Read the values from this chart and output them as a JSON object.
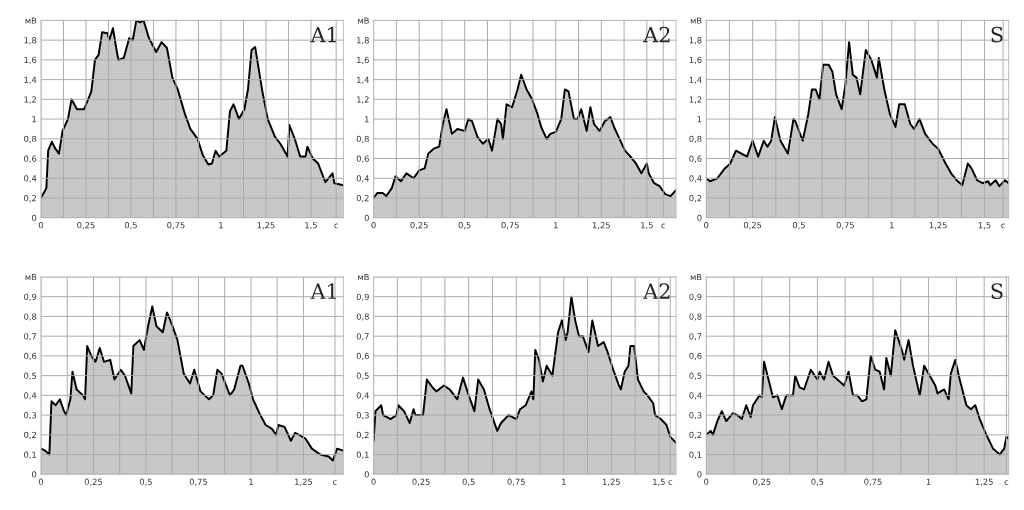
{
  "chart_data": [
    {
      "type": "area",
      "title": "A1",
      "x": [
        0,
        0.03,
        0.04,
        0.06,
        0.08,
        0.1,
        0.12,
        0.15,
        0.17,
        0.2,
        0.24,
        0.28,
        0.3,
        0.32,
        0.34,
        0.37,
        0.38,
        0.4,
        0.42,
        0.43,
        0.46,
        0.49,
        0.51,
        0.53,
        0.55,
        0.57,
        0.6,
        0.62,
        0.64,
        0.67,
        0.7,
        0.73,
        0.76,
        0.8,
        0.83,
        0.87,
        0.9,
        0.93,
        0.95,
        0.97,
        0.99,
        1.03,
        1.05,
        1.07,
        1.1,
        1.13,
        1.15,
        1.17,
        1.19,
        1.23,
        1.26,
        1.3,
        1.33,
        1.37,
        1.38,
        1.41,
        1.44,
        1.47,
        1.48,
        1.51,
        1.54,
        1.58,
        1.62,
        1.63,
        1.68
      ],
      "series": [
        {
          "color": "#c8c8c8",
          "values": [
            0.2,
            0.3,
            0.68,
            0.77,
            0.7,
            0.65,
            0.88,
            1.0,
            1.2,
            1.1,
            1.1,
            1.28,
            1.6,
            1.65,
            1.88,
            1.87,
            1.8,
            1.92,
            1.7,
            1.6,
            1.62,
            1.82,
            1.8,
            2.0,
            1.98,
            2.0,
            1.82,
            1.75,
            1.68,
            1.78,
            1.72,
            1.42,
            1.3,
            1.05,
            0.9,
            0.8,
            0.63,
            0.54,
            0.55,
            0.68,
            0.62,
            0.68,
            1.08,
            1.15,
            1.0,
            1.1,
            1.3,
            1.7,
            1.73,
            1.28,
            1.0,
            0.82,
            0.75,
            0.62,
            0.94,
            0.8,
            0.62,
            0.62,
            0.72,
            0.6,
            0.55,
            0.36,
            0.45,
            0.35,
            0.33
          ]
        }
      ],
      "xlim": [
        0,
        1.68
      ],
      "xticks": [
        0,
        {
          "value": 0.125,
          "label": null
        },
        {
          "value": 0.25,
          "label": "0,25"
        },
        {
          "value": 0.375,
          "label": null
        },
        {
          "value": 0.5,
          "label": "0,5"
        },
        {
          "value": 0.625,
          "label": null
        },
        {
          "value": 0.75,
          "label": "0,75"
        },
        {
          "value": 0.875,
          "label": null
        },
        1,
        {
          "value": 1.125,
          "label": null
        },
        {
          "value": 1.25,
          "label": "1,25"
        },
        {
          "value": 1.375,
          "label": null
        },
        {
          "value": 1.5,
          "label": "1,5"
        },
        {
          "value": 1.64,
          "label": "с"
        }
      ],
      "ylim": [
        0,
        2
      ],
      "yticks": [
        0,
        {
          "value": 0.2,
          "label": "0,2"
        },
        {
          "value": 0.4,
          "label": "0,4"
        },
        {
          "value": 0.6,
          "label": "0,6"
        },
        {
          "value": 0.8,
          "label": "0,8"
        },
        1,
        {
          "value": 1.2,
          "label": "1,2"
        },
        {
          "value": 1.4,
          "label": "1,4"
        },
        {
          "value": 1.6,
          "label": "1,6"
        },
        {
          "value": 1.8,
          "label": "1,8"
        },
        {
          "value": 2,
          "label": "мВ"
        }
      ],
      "grid": true
    },
    {
      "type": "area",
      "title": "A2",
      "x": [
        0,
        0.02,
        0.05,
        0.07,
        0.1,
        0.12,
        0.15,
        0.18,
        0.22,
        0.25,
        0.28,
        0.3,
        0.33,
        0.36,
        0.38,
        0.4,
        0.43,
        0.46,
        0.5,
        0.52,
        0.54,
        0.57,
        0.6,
        0.63,
        0.65,
        0.68,
        0.7,
        0.71,
        0.73,
        0.76,
        0.79,
        0.81,
        0.84,
        0.87,
        0.9,
        0.92,
        0.95,
        0.97,
        1.0,
        1.03,
        1.05,
        1.07,
        1.1,
        1.12,
        1.14,
        1.17,
        1.19,
        1.21,
        1.24,
        1.27,
        1.3,
        1.32,
        1.35,
        1.38,
        1.41,
        1.44,
        1.47,
        1.5,
        1.51,
        1.54,
        1.57,
        1.6,
        1.63,
        1.66
      ],
      "series": [
        {
          "color": "#c8c8c8",
          "values": [
            0.2,
            0.25,
            0.25,
            0.22,
            0.3,
            0.42,
            0.37,
            0.45,
            0.4,
            0.48,
            0.5,
            0.65,
            0.7,
            0.72,
            0.95,
            1.1,
            0.85,
            0.9,
            0.88,
            1.0,
            0.98,
            0.82,
            0.75,
            0.8,
            0.68,
            1.0,
            0.95,
            0.8,
            1.15,
            1.12,
            1.3,
            1.45,
            1.3,
            1.2,
            1.05,
            0.92,
            0.8,
            0.85,
            0.87,
            1.0,
            1.3,
            1.28,
            1.0,
            1.0,
            1.1,
            0.88,
            1.12,
            0.95,
            0.88,
            0.98,
            1.02,
            0.92,
            0.8,
            0.68,
            0.62,
            0.55,
            0.45,
            0.55,
            0.45,
            0.35,
            0.32,
            0.24,
            0.22,
            0.28
          ]
        }
      ],
      "xlim": [
        0,
        1.66
      ],
      "xticks": [
        0,
        {
          "value": 0.125,
          "label": null
        },
        {
          "value": 0.25,
          "label": "0,25"
        },
        {
          "value": 0.375,
          "label": null
        },
        {
          "value": 0.5,
          "label": "0,5"
        },
        {
          "value": 0.625,
          "label": null
        },
        {
          "value": 0.75,
          "label": "0,75"
        },
        {
          "value": 0.875,
          "label": null
        },
        1,
        {
          "value": 1.125,
          "label": null
        },
        {
          "value": 1.25,
          "label": "1,25"
        },
        {
          "value": 1.375,
          "label": null
        },
        {
          "value": 1.5,
          "label": "1,5"
        },
        {
          "value": 1.59,
          "label": "с"
        }
      ],
      "ylim": [
        0,
        2
      ],
      "yticks": [
        0,
        {
          "value": 0.2,
          "label": "0,2"
        },
        {
          "value": 0.4,
          "label": "0,4"
        },
        {
          "value": 0.6,
          "label": "0,6"
        },
        {
          "value": 0.8,
          "label": "0,8"
        },
        1,
        {
          "value": 1.2,
          "label": "1,2"
        },
        {
          "value": 1.4,
          "label": "1,4"
        },
        {
          "value": 1.6,
          "label": "1,6"
        },
        {
          "value": 1.8,
          "label": "1,8"
        },
        {
          "value": 2,
          "label": "мВ"
        }
      ],
      "grid": true
    },
    {
      "type": "area",
      "title": "S",
      "x": [
        0,
        0.02,
        0.06,
        0.1,
        0.13,
        0.16,
        0.19,
        0.22,
        0.25,
        0.28,
        0.31,
        0.33,
        0.35,
        0.37,
        0.4,
        0.44,
        0.47,
        0.48,
        0.52,
        0.55,
        0.57,
        0.59,
        0.61,
        0.63,
        0.66,
        0.68,
        0.7,
        0.73,
        0.75,
        0.77,
        0.79,
        0.81,
        0.83,
        0.86,
        0.89,
        0.92,
        0.93,
        0.96,
        0.99,
        1.02,
        1.04,
        1.07,
        1.1,
        1.12,
        1.15,
        1.18,
        1.22,
        1.25,
        1.29,
        1.32,
        1.35,
        1.38,
        1.41,
        1.43,
        1.46,
        1.49,
        1.52,
        1.53,
        1.56,
        1.58,
        1.61,
        1.63
      ],
      "series": [
        {
          "color": "#c8c8c8",
          "values": [
            0.4,
            0.37,
            0.4,
            0.5,
            0.55,
            0.68,
            0.65,
            0.62,
            0.78,
            0.62,
            0.78,
            0.72,
            0.78,
            1.02,
            0.78,
            0.65,
            1.0,
            0.98,
            0.78,
            1.05,
            1.3,
            1.3,
            1.2,
            1.55,
            1.55,
            1.48,
            1.25,
            1.1,
            1.35,
            1.78,
            1.45,
            1.42,
            1.25,
            1.7,
            1.6,
            1.42,
            1.62,
            1.3,
            1.05,
            0.92,
            1.15,
            1.15,
            0.95,
            0.9,
            1.0,
            0.85,
            0.75,
            0.7,
            0.55,
            0.45,
            0.38,
            0.33,
            0.55,
            0.5,
            0.38,
            0.35,
            0.37,
            0.33,
            0.38,
            0.32,
            0.38,
            0.35
          ]
        }
      ],
      "xlim": [
        0,
        1.63
      ],
      "xticks": [
        0,
        {
          "value": 0.125,
          "label": null
        },
        {
          "value": 0.25,
          "label": "0,25"
        },
        {
          "value": 0.375,
          "label": null
        },
        {
          "value": 0.5,
          "label": "0,5"
        },
        {
          "value": 0.625,
          "label": null
        },
        {
          "value": 0.75,
          "label": "0,75"
        },
        {
          "value": 0.875,
          "label": null
        },
        1,
        {
          "value": 1.125,
          "label": null
        },
        {
          "value": 1.25,
          "label": "1,25"
        },
        {
          "value": 1.375,
          "label": null
        },
        {
          "value": 1.5,
          "label": "1,5"
        },
        {
          "value": 1.6,
          "label": "с"
        }
      ],
      "ylim": [
        0,
        2
      ],
      "yticks": [
        0,
        {
          "value": 0.2,
          "label": "0,2"
        },
        {
          "value": 0.4,
          "label": "0,4"
        },
        {
          "value": 0.6,
          "label": "0,6"
        },
        {
          "value": 0.8,
          "label": "0,8"
        },
        1,
        {
          "value": 1.2,
          "label": "1,2"
        },
        {
          "value": 1.4,
          "label": "1,4"
        },
        {
          "value": 1.6,
          "label": "1,6"
        },
        {
          "value": 1.8,
          "label": "1,8"
        },
        {
          "value": 2,
          "label": "мВ"
        }
      ],
      "grid": true
    },
    {
      "type": "area",
      "title": "A1",
      "x": [
        0,
        0.02,
        0.04,
        0.05,
        0.07,
        0.09,
        0.11,
        0.12,
        0.14,
        0.15,
        0.17,
        0.2,
        0.21,
        0.22,
        0.24,
        0.26,
        0.28,
        0.3,
        0.33,
        0.35,
        0.38,
        0.4,
        0.43,
        0.44,
        0.47,
        0.49,
        0.51,
        0.53,
        0.55,
        0.58,
        0.6,
        0.62,
        0.65,
        0.68,
        0.71,
        0.73,
        0.76,
        0.78,
        0.8,
        0.82,
        0.84,
        0.86,
        0.9,
        0.92,
        0.95,
        0.96,
        0.99,
        1.01,
        1.04,
        1.07,
        1.1,
        1.12,
        1.13,
        1.16,
        1.19,
        1.21,
        1.23,
        1.26,
        1.29,
        1.33,
        1.37,
        1.39,
        1.41,
        1.44
      ],
      "series": [
        {
          "color": "#c8c8c8",
          "values": [
            0.13,
            0.12,
            0.1,
            0.37,
            0.35,
            0.38,
            0.32,
            0.3,
            0.38,
            0.52,
            0.43,
            0.4,
            0.38,
            0.65,
            0.6,
            0.57,
            0.64,
            0.57,
            0.58,
            0.48,
            0.53,
            0.5,
            0.41,
            0.65,
            0.68,
            0.63,
            0.75,
            0.85,
            0.75,
            0.72,
            0.82,
            0.77,
            0.68,
            0.51,
            0.46,
            0.53,
            0.42,
            0.4,
            0.38,
            0.4,
            0.53,
            0.51,
            0.4,
            0.43,
            0.55,
            0.55,
            0.46,
            0.38,
            0.31,
            0.25,
            0.23,
            0.2,
            0.25,
            0.24,
            0.17,
            0.21,
            0.2,
            0.18,
            0.13,
            0.1,
            0.09,
            0.07,
            0.13,
            0.12
          ]
        }
      ],
      "xlim": [
        0,
        1.44
      ],
      "xticks": [
        0,
        {
          "value": 0.125,
          "label": null
        },
        {
          "value": 0.25,
          "label": "0,25"
        },
        {
          "value": 0.375,
          "label": null
        },
        {
          "value": 0.5,
          "label": "0,5"
        },
        {
          "value": 0.625,
          "label": null
        },
        {
          "value": 0.75,
          "label": "0,75"
        },
        {
          "value": 0.875,
          "label": null
        },
        1,
        {
          "value": 1.125,
          "label": null
        },
        {
          "value": 1.25,
          "label": "1,25"
        },
        {
          "value": 1.4,
          "label": "с"
        }
      ],
      "ylim": [
        0,
        1
      ],
      "yticks": [
        0,
        {
          "value": 0.1,
          "label": "0,1"
        },
        {
          "value": 0.2,
          "label": "0,2"
        },
        {
          "value": 0.3,
          "label": "0,3"
        },
        {
          "value": 0.4,
          "label": "0,4"
        },
        {
          "value": 0.5,
          "label": "0,5"
        },
        {
          "value": 0.6,
          "label": "0,6"
        },
        {
          "value": 0.7,
          "label": "0,7"
        },
        {
          "value": 0.8,
          "label": "0,8"
        },
        {
          "value": 0.9,
          "label": "0,9"
        },
        {
          "value": 1,
          "label": "мВ"
        }
      ],
      "grid": true
    },
    {
      "type": "area",
      "title": "A2",
      "x": [
        0,
        0.01,
        0.04,
        0.05,
        0.09,
        0.12,
        0.13,
        0.16,
        0.19,
        0.21,
        0.22,
        0.26,
        0.28,
        0.31,
        0.33,
        0.37,
        0.4,
        0.44,
        0.47,
        0.5,
        0.53,
        0.55,
        0.58,
        0.61,
        0.65,
        0.67,
        0.71,
        0.75,
        0.77,
        0.8,
        0.83,
        0.84,
        0.85,
        0.87,
        0.89,
        0.91,
        0.94,
        0.97,
        0.99,
        1.01,
        1.02,
        1.04,
        1.06,
        1.08,
        1.1,
        1.13,
        1.15,
        1.18,
        1.21,
        1.23,
        1.26,
        1.29,
        1.3,
        1.32,
        1.34,
        1.35,
        1.37,
        1.39,
        1.42,
        1.44,
        1.47,
        1.48,
        1.51,
        1.54,
        1.56,
        1.59
      ],
      "series": [
        {
          "color": "#c8c8c8",
          "values": [
            0.17,
            0.32,
            0.35,
            0.3,
            0.28,
            0.3,
            0.35,
            0.32,
            0.26,
            0.33,
            0.3,
            0.3,
            0.48,
            0.44,
            0.42,
            0.45,
            0.43,
            0.38,
            0.49,
            0.4,
            0.32,
            0.48,
            0.43,
            0.33,
            0.22,
            0.26,
            0.3,
            0.28,
            0.33,
            0.35,
            0.42,
            0.38,
            0.63,
            0.58,
            0.47,
            0.55,
            0.5,
            0.72,
            0.78,
            0.68,
            0.72,
            0.9,
            0.78,
            0.7,
            0.7,
            0.62,
            0.78,
            0.65,
            0.67,
            0.62,
            0.53,
            0.45,
            0.43,
            0.52,
            0.55,
            0.65,
            0.65,
            0.48,
            0.42,
            0.4,
            0.36,
            0.3,
            0.28,
            0.25,
            0.19,
            0.16
          ]
        }
      ],
      "xlim": [
        0,
        1.59
      ],
      "xticks": [
        0,
        {
          "value": 0.125,
          "label": null
        },
        {
          "value": 0.25,
          "label": "0,25"
        },
        {
          "value": 0.375,
          "label": null
        },
        {
          "value": 0.5,
          "label": "0,5"
        },
        {
          "value": 0.625,
          "label": null
        },
        {
          "value": 0.75,
          "label": "0,75"
        },
        {
          "value": 0.875,
          "label": null
        },
        1,
        {
          "value": 1.125,
          "label": null
        },
        {
          "value": 1.25,
          "label": "1,25"
        },
        {
          "value": 1.375,
          "label": null
        },
        {
          "value": 1.5,
          "label": "1,5"
        },
        {
          "value": 1.56,
          "label": "с"
        }
      ],
      "ylim": [
        0,
        1
      ],
      "yticks": [
        0,
        {
          "value": 0.1,
          "label": "0,1"
        },
        {
          "value": 0.2,
          "label": "0,2"
        },
        {
          "value": 0.3,
          "label": "0,3"
        },
        {
          "value": 0.4,
          "label": "0,4"
        },
        {
          "value": 0.5,
          "label": "0,5"
        },
        {
          "value": 0.6,
          "label": "0,6"
        },
        {
          "value": 0.7,
          "label": "0,7"
        },
        {
          "value": 0.8,
          "label": "0,8"
        },
        {
          "value": 0.9,
          "label": "0,9"
        },
        {
          "value": 1,
          "label": "мВ"
        }
      ],
      "grid": true
    },
    {
      "type": "area",
      "title": "S",
      "x": [
        0,
        0.02,
        0.03,
        0.05,
        0.07,
        0.09,
        0.12,
        0.14,
        0.16,
        0.18,
        0.2,
        0.21,
        0.24,
        0.25,
        0.26,
        0.28,
        0.3,
        0.32,
        0.34,
        0.36,
        0.39,
        0.4,
        0.42,
        0.44,
        0.47,
        0.5,
        0.51,
        0.53,
        0.55,
        0.57,
        0.6,
        0.62,
        0.64,
        0.66,
        0.68,
        0.7,
        0.72,
        0.74,
        0.76,
        0.78,
        0.8,
        0.81,
        0.83,
        0.85,
        0.88,
        0.89,
        0.91,
        0.93,
        0.96,
        0.98,
        1.0,
        1.03,
        1.04,
        1.07,
        1.09,
        1.1,
        1.12,
        1.14,
        1.17,
        1.19,
        1.21,
        1.23,
        1.26,
        1.29,
        1.32,
        1.34,
        1.35,
        1.36
      ],
      "series": [
        {
          "color": "#c8c8c8",
          "values": [
            0.2,
            0.22,
            0.2,
            0.27,
            0.32,
            0.27,
            0.31,
            0.3,
            0.28,
            0.35,
            0.29,
            0.35,
            0.4,
            0.39,
            0.57,
            0.48,
            0.39,
            0.4,
            0.33,
            0.4,
            0.4,
            0.5,
            0.44,
            0.43,
            0.53,
            0.48,
            0.52,
            0.48,
            0.57,
            0.5,
            0.47,
            0.45,
            0.52,
            0.4,
            0.4,
            0.37,
            0.38,
            0.6,
            0.53,
            0.52,
            0.43,
            0.59,
            0.5,
            0.73,
            0.63,
            0.58,
            0.68,
            0.55,
            0.4,
            0.55,
            0.51,
            0.45,
            0.41,
            0.43,
            0.38,
            0.51,
            0.58,
            0.48,
            0.35,
            0.33,
            0.35,
            0.28,
            0.2,
            0.13,
            0.1,
            0.13,
            0.19,
            0.18
          ]
        }
      ],
      "xlim": [
        0,
        1.36
      ],
      "xticks": [
        0,
        {
          "value": 0.125,
          "label": null
        },
        {
          "value": 0.25,
          "label": "0,25"
        },
        {
          "value": 0.375,
          "label": null
        },
        {
          "value": 0.5,
          "label": "0,5"
        },
        {
          "value": 0.625,
          "label": null
        },
        {
          "value": 0.75,
          "label": "0,75"
        },
        {
          "value": 0.875,
          "label": null
        },
        1,
        {
          "value": 1.125,
          "label": null
        },
        {
          "value": 1.25,
          "label": "1,25"
        },
        {
          "value": 1.35,
          "label": "с"
        }
      ],
      "ylim": [
        0,
        1
      ],
      "yticks": [
        0,
        {
          "value": 0.1,
          "label": "0,1"
        },
        {
          "value": 0.2,
          "label": "0,2"
        },
        {
          "value": 0.3,
          "label": "0,3"
        },
        {
          "value": 0.4,
          "label": "0,4"
        },
        {
          "value": 0.5,
          "label": "0,5"
        },
        {
          "value": 0.6,
          "label": "0,6"
        },
        {
          "value": 0.7,
          "label": "0,7"
        },
        {
          "value": 0.8,
          "label": "0,8"
        },
        {
          "value": 0.9,
          "label": "0,9"
        },
        {
          "value": 1,
          "label": "мВ"
        }
      ],
      "grid": true
    }
  ]
}
